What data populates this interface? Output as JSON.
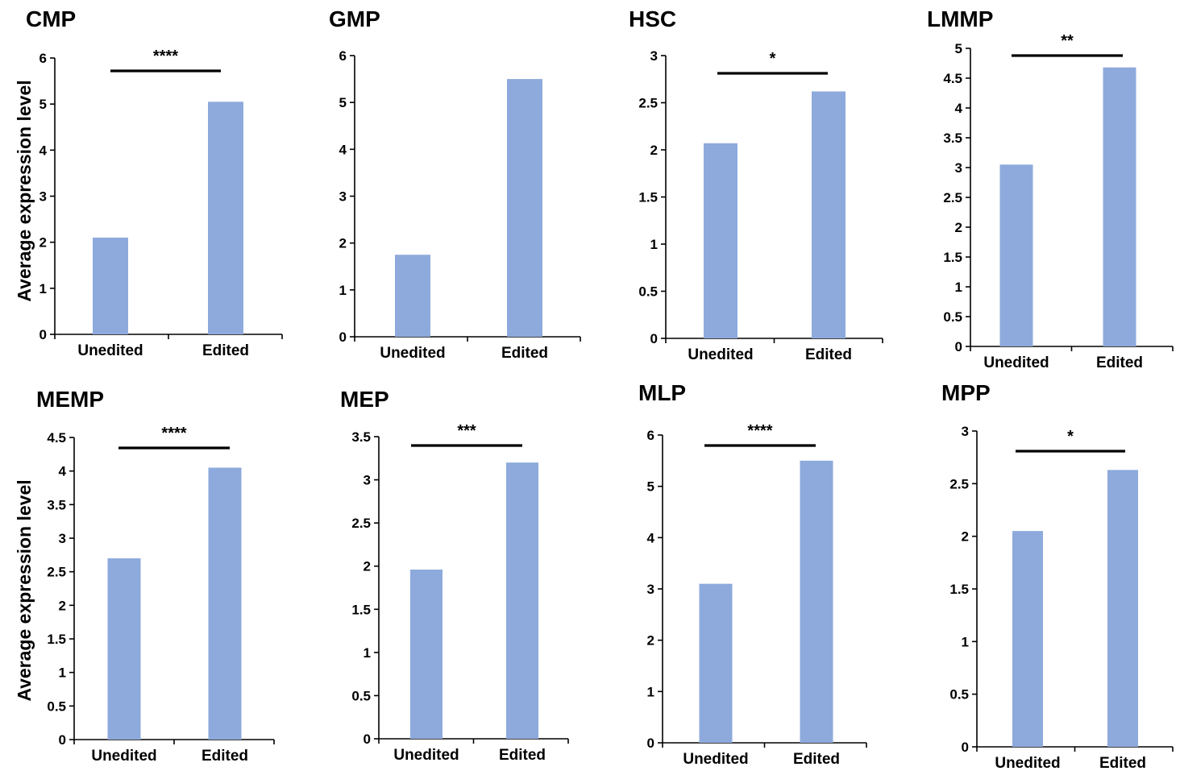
{
  "chart_data": [
    {
      "type": "bar",
      "title": "CMP",
      "ylabel": "Average expression level",
      "categories": [
        "Unedited",
        "Edited"
      ],
      "values": [
        2.1,
        5.05
      ],
      "ylim": [
        0,
        6
      ],
      "yticks": [
        "0",
        "1",
        "2",
        "3",
        "4",
        "5",
        "6"
      ],
      "significance": "****"
    },
    {
      "type": "bar",
      "title": "GMP",
      "ylabel": "",
      "categories": [
        "Unedited",
        "Edited"
      ],
      "values": [
        1.75,
        5.5
      ],
      "ylim": [
        0,
        6
      ],
      "yticks": [
        "0",
        "1",
        "2",
        "3",
        "4",
        "5",
        "6"
      ],
      "significance": ""
    },
    {
      "type": "bar",
      "title": "HSC",
      "ylabel": "",
      "categories": [
        "Unedited",
        "Edited"
      ],
      "values": [
        2.07,
        2.62
      ],
      "ylim": [
        0,
        3
      ],
      "yticks": [
        "0",
        "0.5",
        "1",
        "1.5",
        "2",
        "2.5",
        "3"
      ],
      "significance": "*"
    },
    {
      "type": "bar",
      "title": "LMMP",
      "ylabel": "",
      "categories": [
        "Unedited",
        "Edited"
      ],
      "values": [
        3.05,
        4.68
      ],
      "ylim": [
        0,
        5
      ],
      "yticks": [
        "0",
        "0.5",
        "1",
        "1.5",
        "2",
        "2.5",
        "3",
        "3.5",
        "4",
        "4.5",
        "5"
      ],
      "significance": "**"
    },
    {
      "type": "bar",
      "title": "MEMP",
      "ylabel": "Average expression level",
      "categories": [
        "Unedited",
        "Edited"
      ],
      "values": [
        2.7,
        4.05
      ],
      "ylim": [
        0,
        4.5
      ],
      "yticks": [
        "0",
        "0.5",
        "1",
        "1.5",
        "2",
        "2.5",
        "3",
        "3.5",
        "4",
        "4.5"
      ],
      "significance": "****"
    },
    {
      "type": "bar",
      "title": "MEP",
      "ylabel": "",
      "categories": [
        "Unedited",
        "Edited"
      ],
      "values": [
        1.96,
        3.2
      ],
      "ylim": [
        0,
        3.5
      ],
      "yticks": [
        "0",
        "0.5",
        "1",
        "1.5",
        "2",
        "2.5",
        "3",
        "3.5"
      ],
      "significance": "***"
    },
    {
      "type": "bar",
      "title": "MLP",
      "ylabel": "",
      "categories": [
        "Unedited",
        "Edited"
      ],
      "values": [
        3.1,
        5.5
      ],
      "ylim": [
        0,
        6
      ],
      "yticks": [
        "0",
        "1",
        "2",
        "3",
        "4",
        "5",
        "6"
      ],
      "significance": "****"
    },
    {
      "type": "bar",
      "title": "MPP",
      "ylabel": "",
      "categories": [
        "Unedited",
        "Edited"
      ],
      "values": [
        2.05,
        2.63
      ],
      "ylim": [
        0,
        3
      ],
      "yticks": [
        "0",
        "0.5",
        "1",
        "1.5",
        "2",
        "2.5",
        "3"
      ],
      "significance": "*"
    }
  ],
  "colors": {
    "bar": "#8eaadc",
    "axis": "#000000",
    "text": "#000000"
  }
}
